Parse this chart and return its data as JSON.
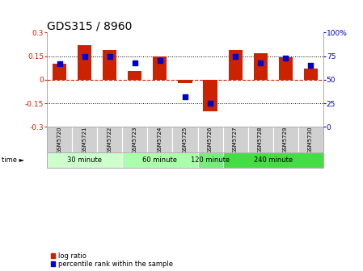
{
  "title": "GDS315 / 8960",
  "samples": [
    "GSM5720",
    "GSM5721",
    "GSM5722",
    "GSM5723",
    "GSM5724",
    "GSM5725",
    "GSM5726",
    "GSM5727",
    "GSM5728",
    "GSM5729",
    "GSM5730"
  ],
  "log_ratio": [
    0.1,
    0.22,
    0.19,
    0.055,
    0.15,
    -0.02,
    -0.2,
    0.19,
    0.17,
    0.145,
    0.07
  ],
  "percentile": [
    67,
    75,
    75,
    68,
    70,
    32,
    25,
    75,
    68,
    73,
    65
  ],
  "bar_color": "#cc2200",
  "dot_color": "#0000cc",
  "ylim": [
    -0.3,
    0.3
  ],
  "y2lim": [
    0,
    100
  ],
  "yticks": [
    -0.3,
    -0.15,
    0.0,
    0.15,
    0.3
  ],
  "y2ticks": [
    0,
    25,
    50,
    75,
    100
  ],
  "ytick_labels": [
    "-0.3",
    "-0.15",
    "0",
    "0.15",
    "0.3"
  ],
  "y2tick_labels": [
    "0",
    "25",
    "50",
    "75",
    "100%"
  ],
  "hlines": [
    -0.15,
    0.0,
    0.15
  ],
  "groups": [
    {
      "label": "30 minute",
      "start": 0,
      "end": 2
    },
    {
      "label": "60 minute",
      "start": 3,
      "end": 5
    },
    {
      "label": "120 minute",
      "start": 6,
      "end": 6
    },
    {
      "label": "240 minute",
      "start": 7,
      "end": 10
    }
  ],
  "group_colors": [
    "#ccffcc",
    "#aaffaa",
    "#77ee77",
    "#44dd44"
  ],
  "title_fontsize": 10,
  "tick_fontsize": 6.5,
  "legend_labels": [
    "log ratio",
    "percentile rank within the sample"
  ],
  "legend_colors": [
    "#cc2200",
    "#0000cc"
  ],
  "bar_width": 0.55,
  "dot_size": 18,
  "sample_cell_color": "#d0d0d0",
  "time_label": "time"
}
